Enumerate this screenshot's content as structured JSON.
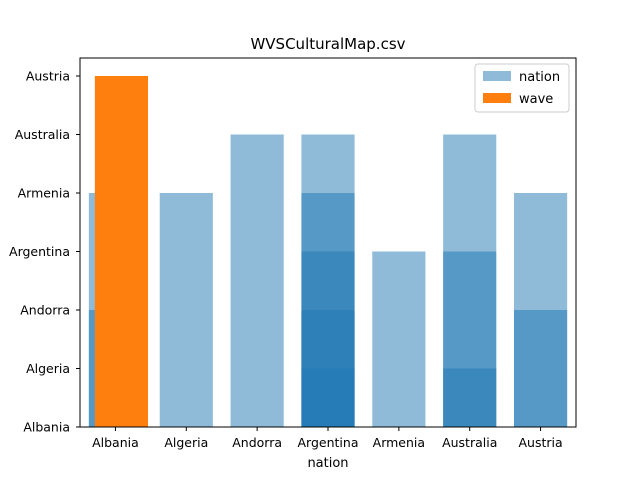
{
  "chart_data": {
    "type": "bar",
    "title": "WVSCulturalMap.csv",
    "xlabel": "nation",
    "ylabel": "",
    "categories": [
      "Albania",
      "Algeria",
      "Andorra",
      "Argentina",
      "Armenia",
      "Australia",
      "Austria"
    ],
    "y_categories": [
      "Albania",
      "Algeria",
      "Andorra",
      "Argentina",
      "Armenia",
      "Australia",
      "Austria"
    ],
    "series": [
      {
        "name": "nation",
        "color": "#1f77b4",
        "opacity": 0.5,
        "bars": [
          {
            "category": "Albania",
            "tops": [
              2,
              4
            ]
          },
          {
            "category": "Algeria",
            "tops": [
              4
            ]
          },
          {
            "category": "Andorra",
            "tops": [
              5
            ]
          },
          {
            "category": "Argentina",
            "tops": [
              1,
              2,
              3,
              4,
              5
            ]
          },
          {
            "category": "Armenia",
            "tops": [
              3
            ]
          },
          {
            "category": "Australia",
            "tops": [
              1,
              3,
              5
            ]
          },
          {
            "category": "Austria",
            "tops": [
              2,
              4
            ]
          }
        ]
      },
      {
        "name": "wave",
        "color": "#ff7f0e",
        "opacity": 1.0,
        "bars": [
          {
            "category": "Albania",
            "tops": [
              6
            ]
          }
        ]
      }
    ],
    "legend": {
      "placement": "top-right",
      "entries": [
        {
          "label": "nation",
          "color": "#1f77b4",
          "opacity": 0.5
        },
        {
          "label": "wave",
          "color": "#ff7f0e",
          "opacity": 1.0
        }
      ]
    },
    "grid": false
  }
}
